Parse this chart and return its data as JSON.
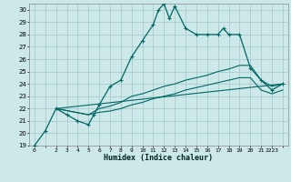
{
  "xlabel": "Humidex (Indice chaleur)",
  "bg_color": "#cce8e8",
  "grid_color": "#aacccc",
  "line_color": "#006666",
  "ylim": [
    19,
    30.5
  ],
  "xlim": [
    -0.5,
    23.5
  ],
  "yticks": [
    19,
    20,
    21,
    22,
    23,
    24,
    25,
    26,
    27,
    28,
    29,
    30
  ],
  "xticks": [
    0,
    1,
    2,
    3,
    4,
    5,
    6,
    7,
    8,
    9,
    10,
    11,
    12,
    13,
    14,
    15,
    16,
    17,
    18,
    19,
    20,
    21,
    22,
    23
  ],
  "xtick_labels": [
    "0",
    "",
    "2",
    "3",
    "4",
    "5",
    "6",
    "7",
    "8",
    "9",
    "10",
    "11",
    "12",
    "13",
    "14",
    "15",
    "16",
    "17",
    "18",
    "19",
    "20",
    "21",
    "2223",
    ""
  ],
  "main_x": [
    0,
    1,
    2,
    3,
    4,
    5,
    5.5,
    6,
    7,
    8,
    9,
    10,
    11,
    11.5,
    12,
    12.5,
    13,
    14,
    15,
    16,
    17,
    17.5,
    18,
    19,
    20,
    21,
    22,
    23
  ],
  "main_y": [
    19.0,
    20.2,
    22.0,
    21.5,
    21.0,
    20.7,
    21.5,
    22.3,
    23.8,
    24.3,
    26.2,
    27.5,
    28.8,
    30.0,
    30.5,
    29.3,
    30.3,
    28.5,
    28.0,
    28.0,
    28.0,
    28.5,
    28.0,
    28.0,
    25.3,
    24.3,
    23.5,
    24.0
  ],
  "line2_x": [
    2,
    5,
    6,
    7,
    8,
    9,
    10,
    11,
    12,
    13,
    14,
    15,
    16,
    17,
    18,
    19,
    20,
    21,
    22,
    23
  ],
  "line2_y": [
    22.0,
    21.5,
    22.0,
    22.2,
    22.5,
    23.0,
    23.2,
    23.5,
    23.8,
    24.0,
    24.3,
    24.5,
    24.7,
    25.0,
    25.2,
    25.5,
    25.5,
    24.3,
    23.8,
    24.0
  ],
  "line3_x": [
    2,
    5,
    6,
    7,
    8,
    9,
    10,
    11,
    12,
    13,
    14,
    15,
    16,
    17,
    18,
    19,
    20,
    21,
    22,
    23
  ],
  "line3_y": [
    22.0,
    21.5,
    21.7,
    21.8,
    22.0,
    22.3,
    22.5,
    22.8,
    23.0,
    23.2,
    23.5,
    23.7,
    23.9,
    24.1,
    24.3,
    24.5,
    24.5,
    23.5,
    23.2,
    23.5
  ],
  "line4_x": [
    2,
    23
  ],
  "line4_y": [
    22.0,
    24.0
  ]
}
